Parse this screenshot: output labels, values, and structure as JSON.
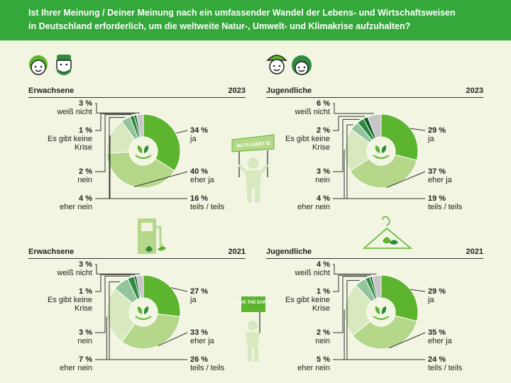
{
  "header": {
    "question_line1": "Ist Ihrer Meinung / Deiner Meinung nach ein umfassender Wandel der Lebens- und Wirtschaftsweisen",
    "question_line2": "in Deutschland erforderlich, um die weltweite Natur-, Umwelt- und Klimakrise aufzuhalten?"
  },
  "colors": {
    "header_bg": "#34a83a",
    "page_bg": "#f1f5e1",
    "ja": "#5db42f",
    "eher_ja": "#b5d78a",
    "teils_teils": "#d9e9bf",
    "eher_nein": "#93c49b",
    "nein": "#2d8a3e",
    "keine_krise": "#0f5a28",
    "weiss_nicht": "#c6c6c6"
  },
  "signs": {
    "no_planet_b": "NO PLANET B",
    "save_the_earth": "SAVE THE EARTH"
  },
  "chart_data": [
    {
      "type": "pie",
      "group": "Erwachsene",
      "year": "2023",
      "categories": [
        "ja",
        "eher ja",
        "teils / teils",
        "eher nein",
        "nein",
        "Es gibt keine Krise",
        "weiß nicht"
      ],
      "values": [
        34,
        40,
        16,
        4,
        2,
        1,
        3
      ],
      "labels": [
        {
          "pct": "34 %",
          "text": "ja"
        },
        {
          "pct": "40 %",
          "text": "eher ja"
        },
        {
          "pct": "16 %",
          "text": "teils / teils"
        },
        {
          "pct": "4 %",
          "text": "eher nein"
        },
        {
          "pct": "2 %",
          "text": "nein"
        },
        {
          "pct": "1 %",
          "text": "Es gibt keine Krise"
        },
        {
          "pct": "3 %",
          "text": "weiß nicht"
        }
      ]
    },
    {
      "type": "pie",
      "group": "Jugendliche",
      "year": "2023",
      "categories": [
        "ja",
        "eher ja",
        "teils / teils",
        "eher nein",
        "nein",
        "Es gibt keine Krise",
        "weiß nicht"
      ],
      "values": [
        29,
        37,
        19,
        4,
        3,
        2,
        6
      ],
      "labels": [
        {
          "pct": "29 %",
          "text": "ja"
        },
        {
          "pct": "37 %",
          "text": "eher ja"
        },
        {
          "pct": "19 %",
          "text": "teils / teils"
        },
        {
          "pct": "4 %",
          "text": "eher nein"
        },
        {
          "pct": "3 %",
          "text": "nein"
        },
        {
          "pct": "2 %",
          "text": "Es gibt keine Krise"
        },
        {
          "pct": "6 %",
          "text": "weiß nicht"
        }
      ]
    },
    {
      "type": "pie",
      "group": "Erwachsene",
      "year": "2021",
      "categories": [
        "ja",
        "eher ja",
        "teils / teils",
        "eher nein",
        "nein",
        "Es gibt keine Krise",
        "weiß nicht"
      ],
      "values": [
        27,
        33,
        26,
        7,
        3,
        1,
        3
      ],
      "labels": [
        {
          "pct": "27 %",
          "text": "ja"
        },
        {
          "pct": "33 %",
          "text": "eher ja"
        },
        {
          "pct": "26 %",
          "text": "teils / teils"
        },
        {
          "pct": "7 %",
          "text": "eher nein"
        },
        {
          "pct": "3 %",
          "text": "nein"
        },
        {
          "pct": "1 %",
          "text": "Es gibt keine Krise"
        },
        {
          "pct": "3 %",
          "text": "weiß nicht"
        }
      ]
    },
    {
      "type": "pie",
      "group": "Jugendliche",
      "year": "2021",
      "categories": [
        "ja",
        "eher ja",
        "teils / teils",
        "eher nein",
        "nein",
        "Es gibt keine Krise",
        "weiß nicht"
      ],
      "values": [
        29,
        35,
        24,
        5,
        2,
        1,
        4
      ],
      "labels": [
        {
          "pct": "29 %",
          "text": "ja"
        },
        {
          "pct": "35 %",
          "text": "eher ja"
        },
        {
          "pct": "24 %",
          "text": "teils / teils"
        },
        {
          "pct": "5 %",
          "text": "eher nein"
        },
        {
          "pct": "2 %",
          "text": "nein"
        },
        {
          "pct": "1 %",
          "text": "Es gibt keine Krise"
        },
        {
          "pct": "4 %",
          "text": "weiß nicht"
        }
      ]
    }
  ]
}
